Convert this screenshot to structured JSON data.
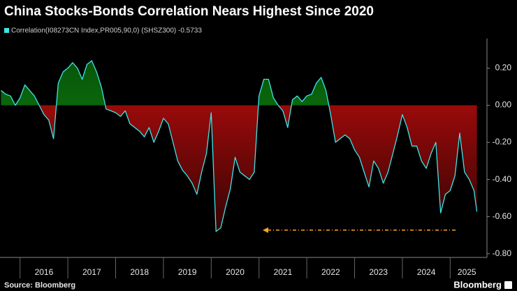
{
  "chart_data": {
    "type": "line",
    "title": "China Stocks-Bonds Correlation Nears Highest Since 2020",
    "source": "Source: Bloomberg",
    "logo": "Bloomberg",
    "x": [
      2015.6,
      2015.7,
      2015.8,
      2015.9,
      2016.0,
      2016.1,
      2016.2,
      2016.3,
      2016.4,
      2016.5,
      2016.6,
      2016.7,
      2016.8,
      2016.9,
      2017.0,
      2017.1,
      2017.2,
      2017.3,
      2017.4,
      2017.5,
      2017.6,
      2017.7,
      2017.8,
      2017.9,
      2018.0,
      2018.1,
      2018.2,
      2018.3,
      2018.4,
      2018.5,
      2018.6,
      2018.7,
      2018.8,
      2018.9,
      2019.0,
      2019.1,
      2019.2,
      2019.3,
      2019.4,
      2019.5,
      2019.6,
      2019.7,
      2019.8,
      2019.9,
      2020.0,
      2020.1,
      2020.2,
      2020.3,
      2020.4,
      2020.5,
      2020.6,
      2020.7,
      2020.8,
      2020.9,
      2021.0,
      2021.1,
      2021.2,
      2021.3,
      2021.4,
      2021.5,
      2021.6,
      2021.7,
      2021.8,
      2021.9,
      2022.0,
      2022.1,
      2022.2,
      2022.3,
      2022.4,
      2022.5,
      2022.6,
      2022.7,
      2022.8,
      2022.9,
      2023.0,
      2023.1,
      2023.2,
      2023.3,
      2023.4,
      2023.5,
      2023.6,
      2023.7,
      2023.8,
      2023.9,
      2024.0,
      2024.1,
      2024.2,
      2024.3,
      2024.4,
      2024.5,
      2024.6,
      2024.7,
      2024.8,
      2024.9,
      2025.0,
      2025.1,
      2025.2,
      2025.3,
      2025.4,
      2025.5,
      2025.56
    ],
    "series": [
      {
        "name": "Correlation(I08273CN Index,PR005,90,0) (SHSZ300) -0.5733",
        "color": "#3fe3e6",
        "values": [
          0.08,
          0.06,
          0.05,
          0.0,
          0.04,
          0.11,
          0.08,
          0.05,
          0.0,
          -0.05,
          -0.08,
          -0.18,
          0.12,
          0.18,
          0.2,
          0.23,
          0.2,
          0.14,
          0.22,
          0.24,
          0.18,
          0.1,
          -0.02,
          -0.03,
          -0.04,
          -0.06,
          -0.03,
          -0.1,
          -0.12,
          -0.14,
          -0.17,
          -0.12,
          -0.2,
          -0.14,
          -0.07,
          -0.1,
          -0.2,
          -0.3,
          -0.35,
          -0.38,
          -0.42,
          -0.48,
          -0.36,
          -0.26,
          -0.04,
          -0.68,
          -0.66,
          -0.55,
          -0.45,
          -0.28,
          -0.36,
          -0.38,
          -0.4,
          -0.36,
          0.05,
          0.14,
          0.14,
          0.04,
          0.0,
          -0.03,
          -0.12,
          0.03,
          0.05,
          0.02,
          0.05,
          0.06,
          0.12,
          0.15,
          0.08,
          -0.05,
          -0.2,
          -0.18,
          -0.16,
          -0.18,
          -0.24,
          -0.28,
          -0.36,
          -0.44,
          -0.3,
          -0.34,
          -0.42,
          -0.36,
          -0.26,
          -0.16,
          -0.05,
          -0.12,
          -0.22,
          -0.22,
          -0.3,
          -0.34,
          -0.26,
          -0.2,
          -0.58,
          -0.48,
          -0.46,
          -0.38,
          -0.15,
          -0.36,
          -0.4,
          -0.46,
          -0.5733
        ]
      }
    ],
    "positive_fill": "#0f9a12",
    "negative_fill": "#9a0a0a",
    "xlim": [
      2015.58,
      2025.77
    ],
    "xticks": [
      {
        "value": 2016.5,
        "label": "2016"
      },
      {
        "value": 2017.5,
        "label": "2017"
      },
      {
        "value": 2018.5,
        "label": "2018"
      },
      {
        "value": 2019.5,
        "label": "2019"
      },
      {
        "value": 2020.5,
        "label": "2020"
      },
      {
        "value": 2021.5,
        "label": "2021"
      },
      {
        "value": 2022.5,
        "label": "2022"
      },
      {
        "value": 2023.5,
        "label": "2023"
      },
      {
        "value": 2024.5,
        "label": "2024"
      },
      {
        "value": 2025.35,
        "label": "2025"
      }
    ],
    "ylim": [
      -0.82,
      0.36
    ],
    "yticks": [
      {
        "value": 0.2,
        "label": "0.20"
      },
      {
        "value": 0,
        "label": "0.00"
      },
      {
        "value": -0.2,
        "label": "-0.20"
      },
      {
        "value": -0.4,
        "label": "-0.40"
      },
      {
        "value": -0.6,
        "label": "-0.60"
      },
      {
        "value": -0.8,
        "label": "-0.80"
      }
    ]
  }
}
